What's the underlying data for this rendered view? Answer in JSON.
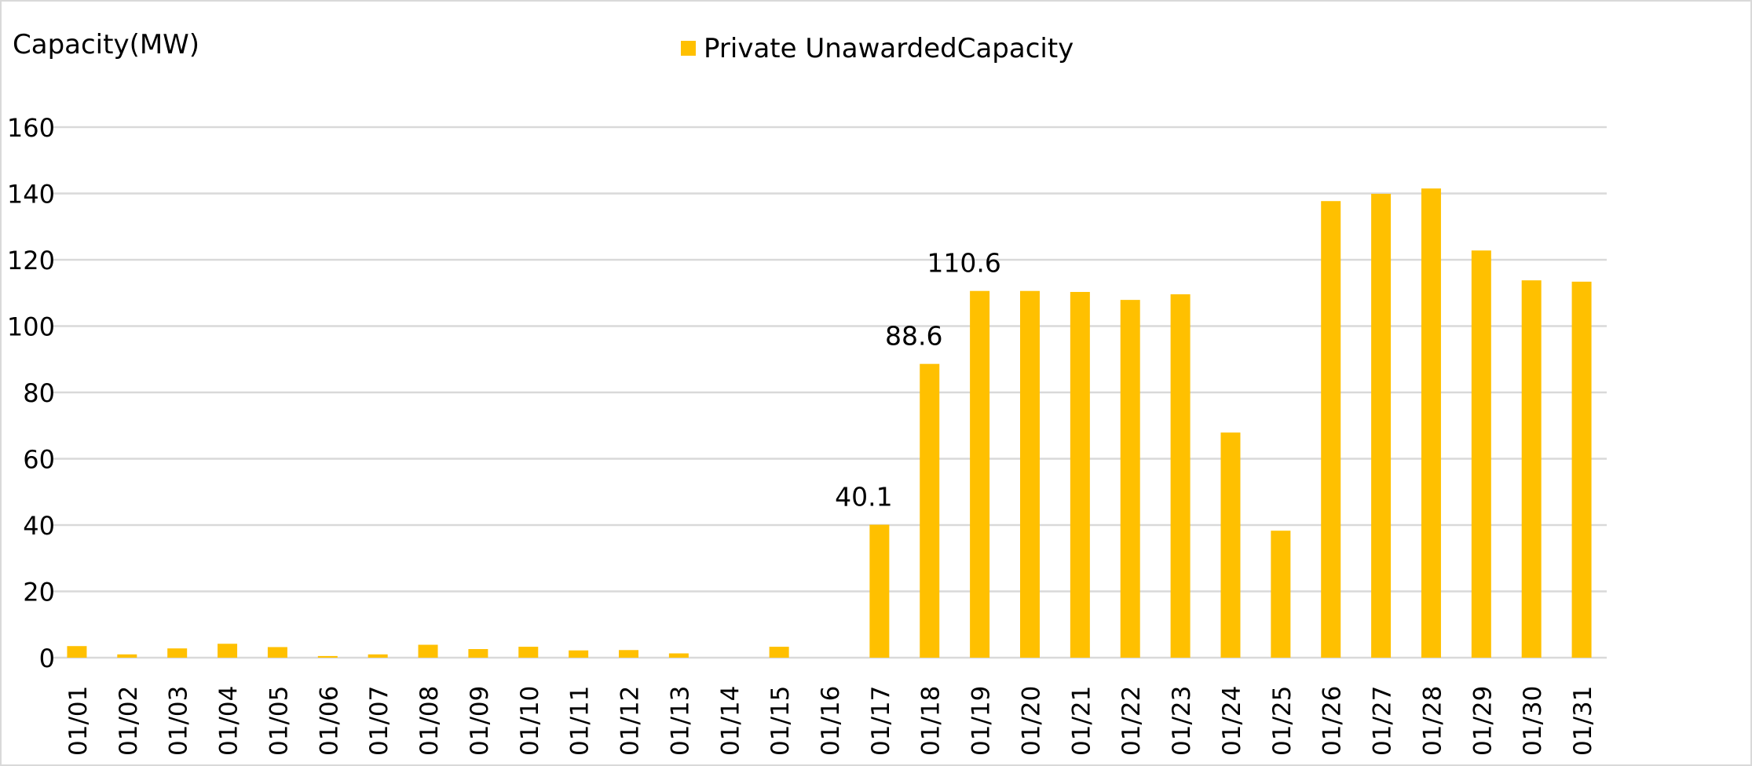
{
  "chart_data": {
    "type": "bar",
    "title": "",
    "ylabel": "Capacity(MW)",
    "xlabel": "",
    "ylim": [
      0,
      160
    ],
    "yticks": [
      0,
      20,
      40,
      60,
      80,
      100,
      120,
      140,
      160
    ],
    "grid": true,
    "legend_position": "top-center",
    "categories": [
      "01/01",
      "01/02",
      "01/03",
      "01/04",
      "01/05",
      "01/06",
      "01/07",
      "01/08",
      "01/09",
      "01/10",
      "01/11",
      "01/12",
      "01/13",
      "01/14",
      "01/15",
      "01/16",
      "01/17",
      "01/18",
      "01/19",
      "01/20",
      "01/21",
      "01/22",
      "01/23",
      "01/24",
      "01/25",
      "01/26",
      "01/27",
      "01/28",
      "01/29",
      "01/30",
      "01/31"
    ],
    "series": [
      {
        "name": "Private UnawardedCapacity",
        "color": "#FFC000",
        "values": [
          3.5,
          1.0,
          2.8,
          4.2,
          3.2,
          0.5,
          1.0,
          3.9,
          2.6,
          3.3,
          2.2,
          2.3,
          1.3,
          0,
          3.3,
          0,
          40.1,
          88.6,
          110.6,
          110.6,
          110.3,
          107.9,
          109.6,
          67.9,
          38.3,
          137.7,
          139.9,
          141.5,
          122.8,
          113.8,
          113.4
        ]
      }
    ],
    "data_labels": [
      {
        "category": "01/17",
        "text": "40.1"
      },
      {
        "category": "01/18",
        "text": "88.6"
      },
      {
        "category": "01/19",
        "text": "110.6"
      }
    ]
  },
  "colors": {
    "bar": "#FFC000",
    "grid": "#d9d9d9",
    "text": "#000000"
  }
}
